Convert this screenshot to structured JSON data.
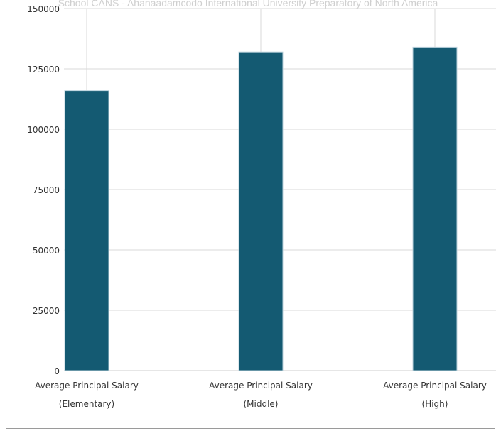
{
  "chart_data": {
    "type": "bar",
    "title": "School CANS - Ahanaadamcodo International University Preparatory of North America",
    "categories": [
      [
        "Average Principal Salary",
        "(Elementary)"
      ],
      [
        "Average Principal Salary",
        "(Middle)"
      ],
      [
        "Average Principal Salary",
        "(High)"
      ]
    ],
    "values": [
      116000,
      132000,
      134000
    ],
    "ylim": [
      0,
      150000
    ],
    "yticks": [
      0,
      25000,
      50000,
      75000,
      100000,
      125000,
      150000
    ],
    "grid": true,
    "bar_color": "#145a72"
  }
}
